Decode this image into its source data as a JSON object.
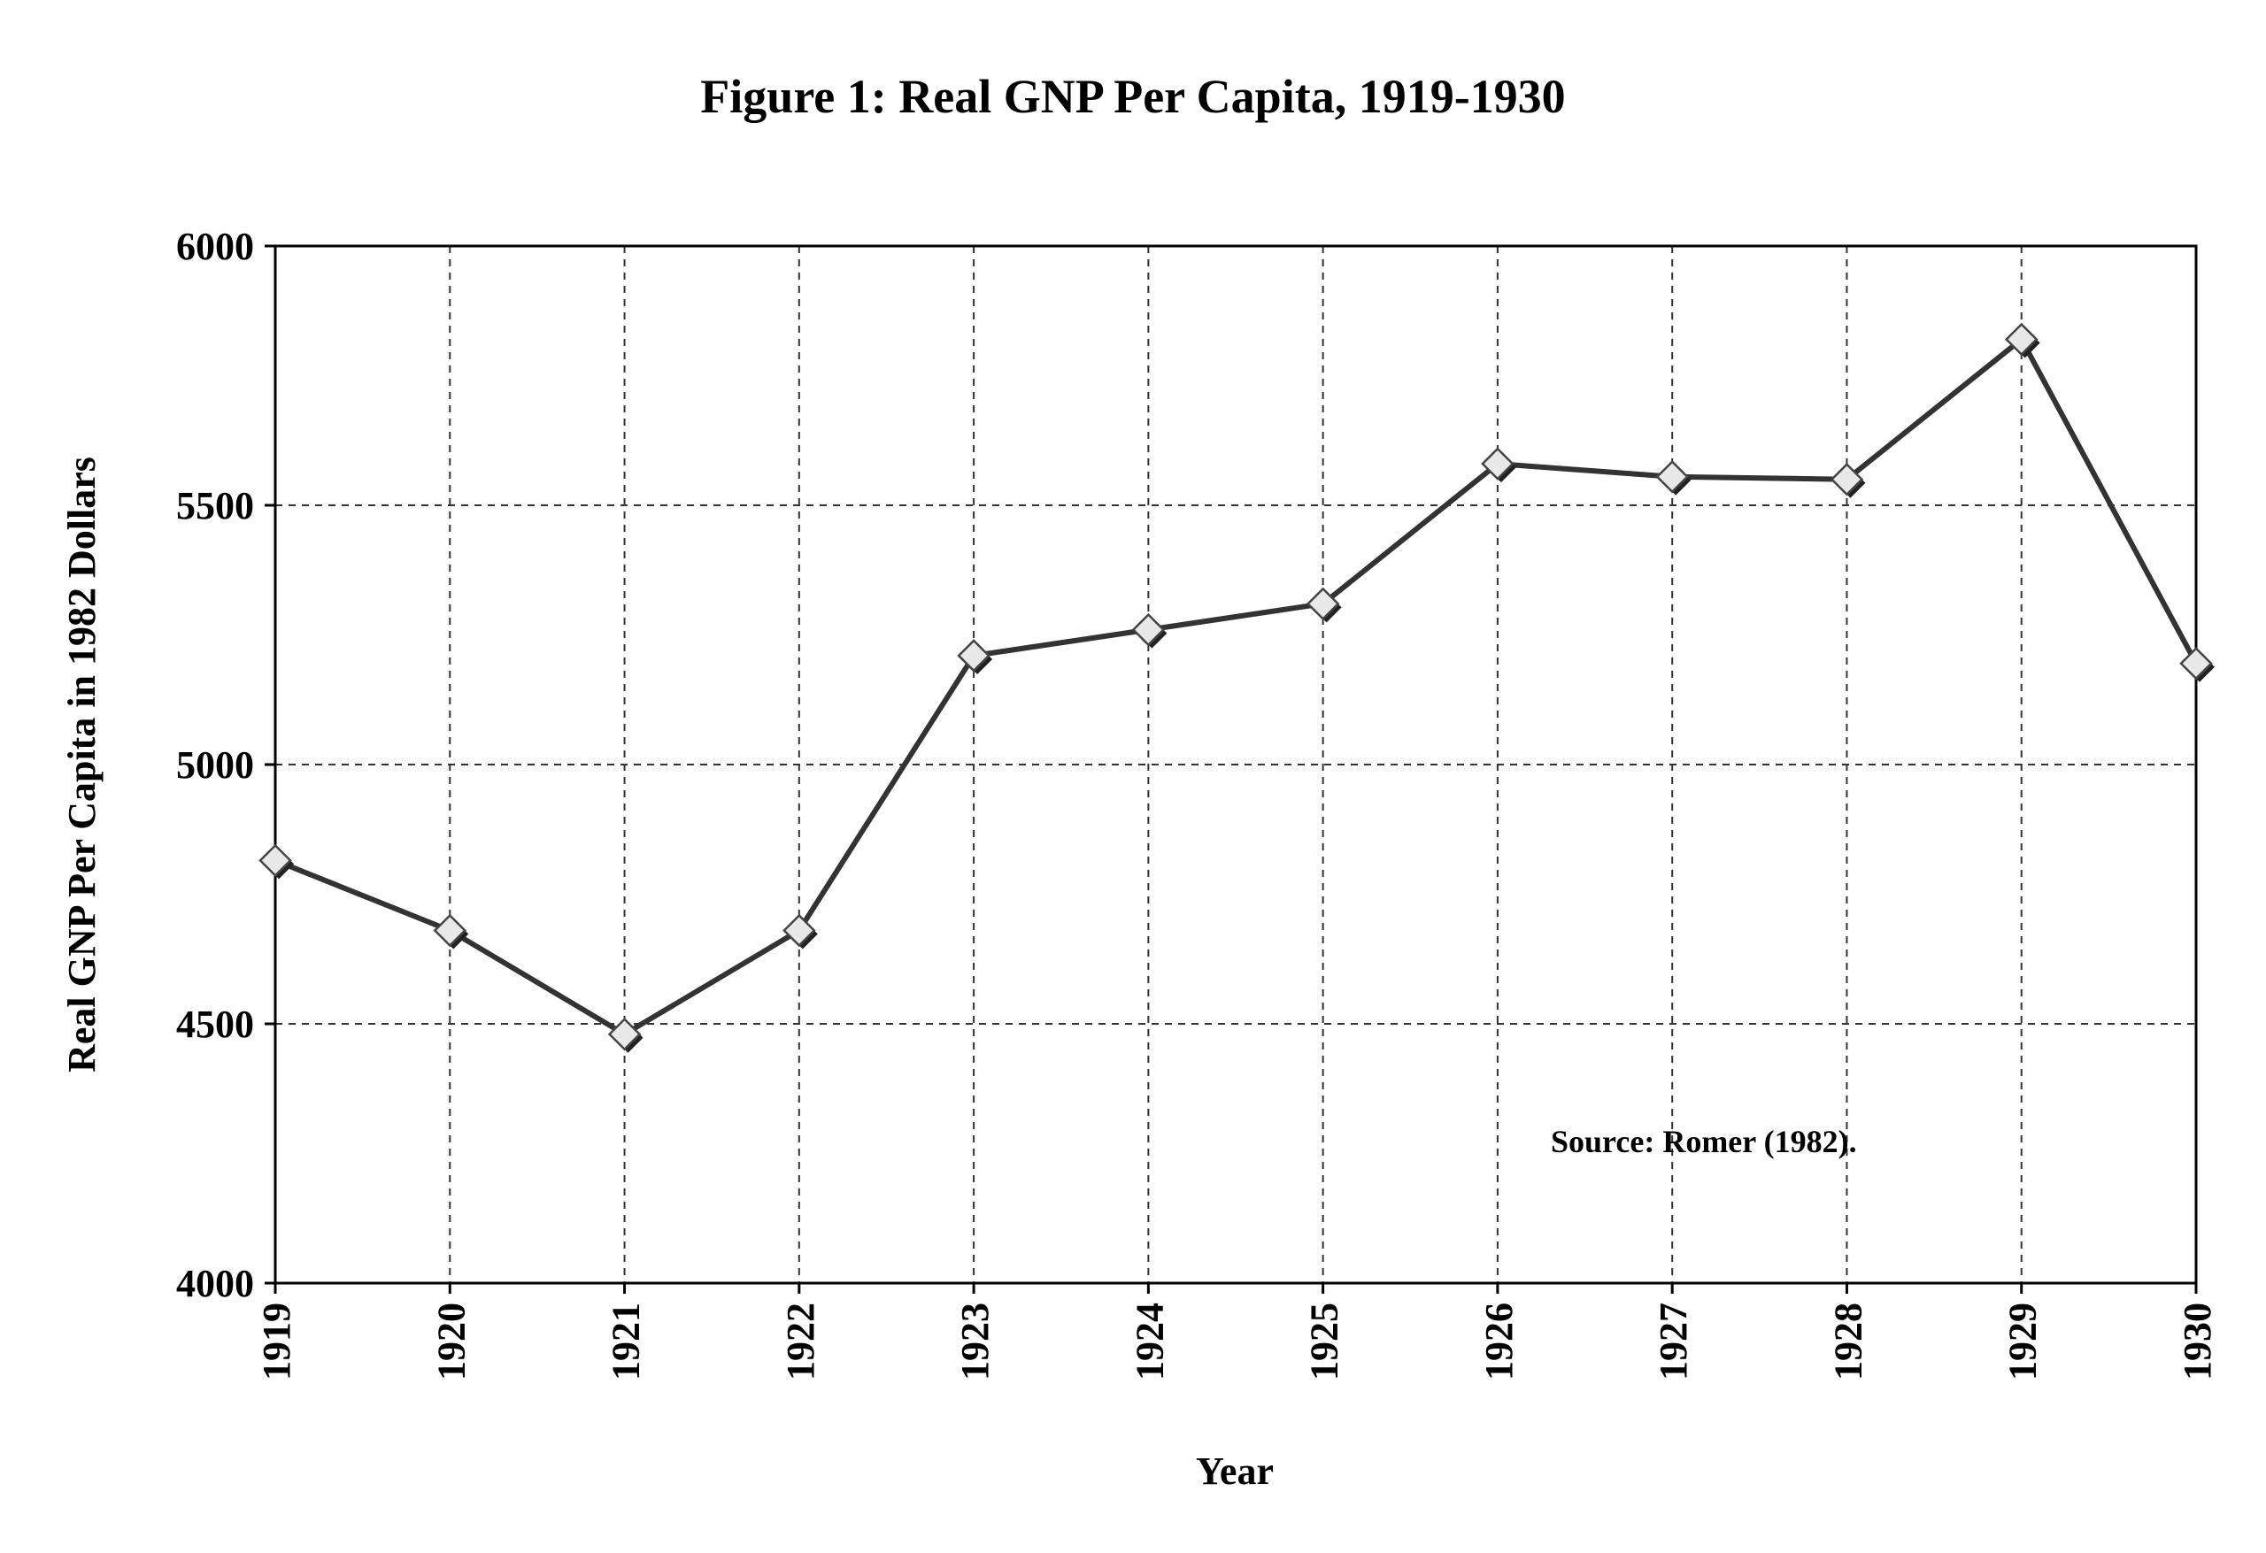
{
  "chart_data": {
    "type": "line",
    "title": "Figure 1: Real GNP Per Capita, 1919-1930",
    "xlabel": "Year",
    "ylabel": "Real GNP Per Capita in 1982 Dollars",
    "annotation": "Source: Romer (1982).",
    "x": [
      "1919",
      "1920",
      "1921",
      "1922",
      "1923",
      "1924",
      "1925",
      "1926",
      "1927",
      "1928",
      "1929",
      "1930"
    ],
    "y_ticks": [
      "4000",
      "4500",
      "5000",
      "5500",
      "6000"
    ],
    "ylim": [
      4000,
      6000
    ],
    "grid": true,
    "marker": "diamond",
    "line_color": "#333333",
    "marker_fill": "#e8e8e8",
    "series": [
      {
        "values": [
          4815,
          4680,
          4480,
          4680,
          5210,
          5260,
          5310,
          5580,
          5555,
          5550,
          5820,
          5195
        ]
      }
    ]
  }
}
